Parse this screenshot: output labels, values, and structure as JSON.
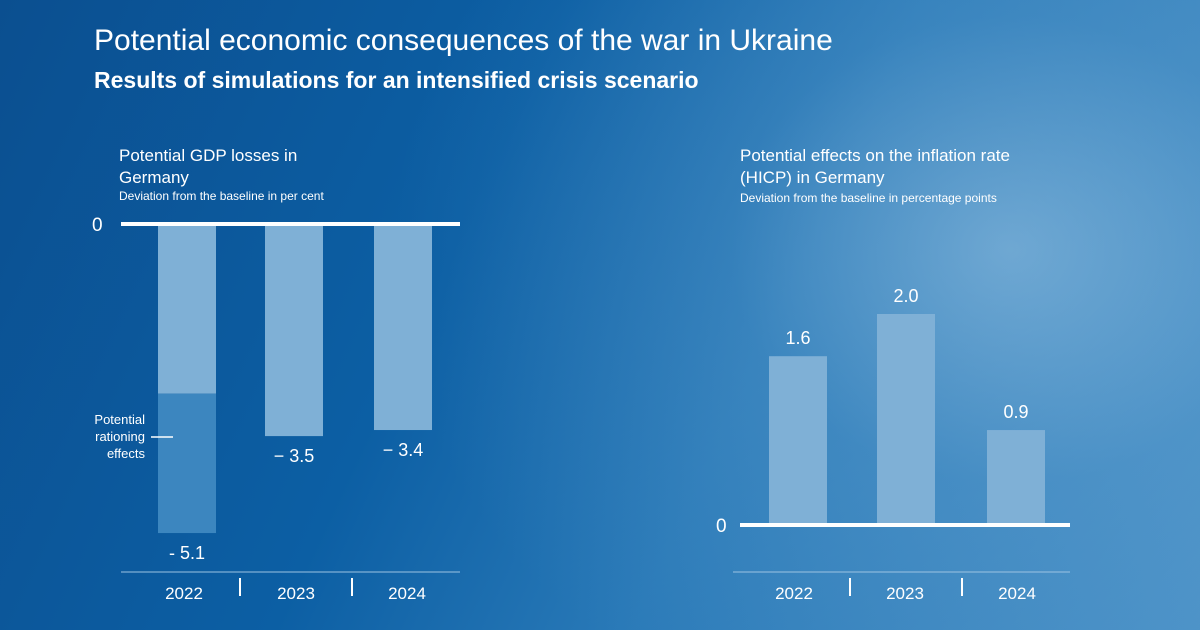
{
  "header": {
    "title": "Potential economic consequences of the war in Ukraine",
    "subtitle": "Results of simulations for an intensified crisis scenario"
  },
  "colors": {
    "bar": "#7fb0d6",
    "rationing": "#3c86bf",
    "text": "#ffffff"
  },
  "chart_data": [
    {
      "type": "bar",
      "title": "Potential GDP losses in Germany",
      "subtitle": "Deviation from the baseline in per cent",
      "categories": [
        "2022",
        "2023",
        "2024"
      ],
      "series": [
        {
          "name": "GDP loss",
          "values": [
            -2.8,
            -3.5,
            -3.4
          ]
        },
        {
          "name": "Potential rationing effects",
          "values": [
            -2.3,
            0,
            0
          ]
        }
      ],
      "data_labels": [
        "- 5.1",
        "− 3.5",
        "− 3.4"
      ],
      "zero_label": "0",
      "annotation": "Potential rationing effects",
      "ylim": [
        -5.1,
        0
      ]
    },
    {
      "type": "bar",
      "title": "Potential effects on the inflation rate (HICP) in Germany",
      "subtitle": "Deviation from the baseline in percentage points",
      "categories": [
        "2022",
        "2023",
        "2024"
      ],
      "values": [
        1.6,
        2.0,
        0.9
      ],
      "data_labels": [
        "1.6",
        "2.0",
        "0.9"
      ],
      "zero_label": "0",
      "ylim": [
        0,
        2.0
      ]
    }
  ]
}
